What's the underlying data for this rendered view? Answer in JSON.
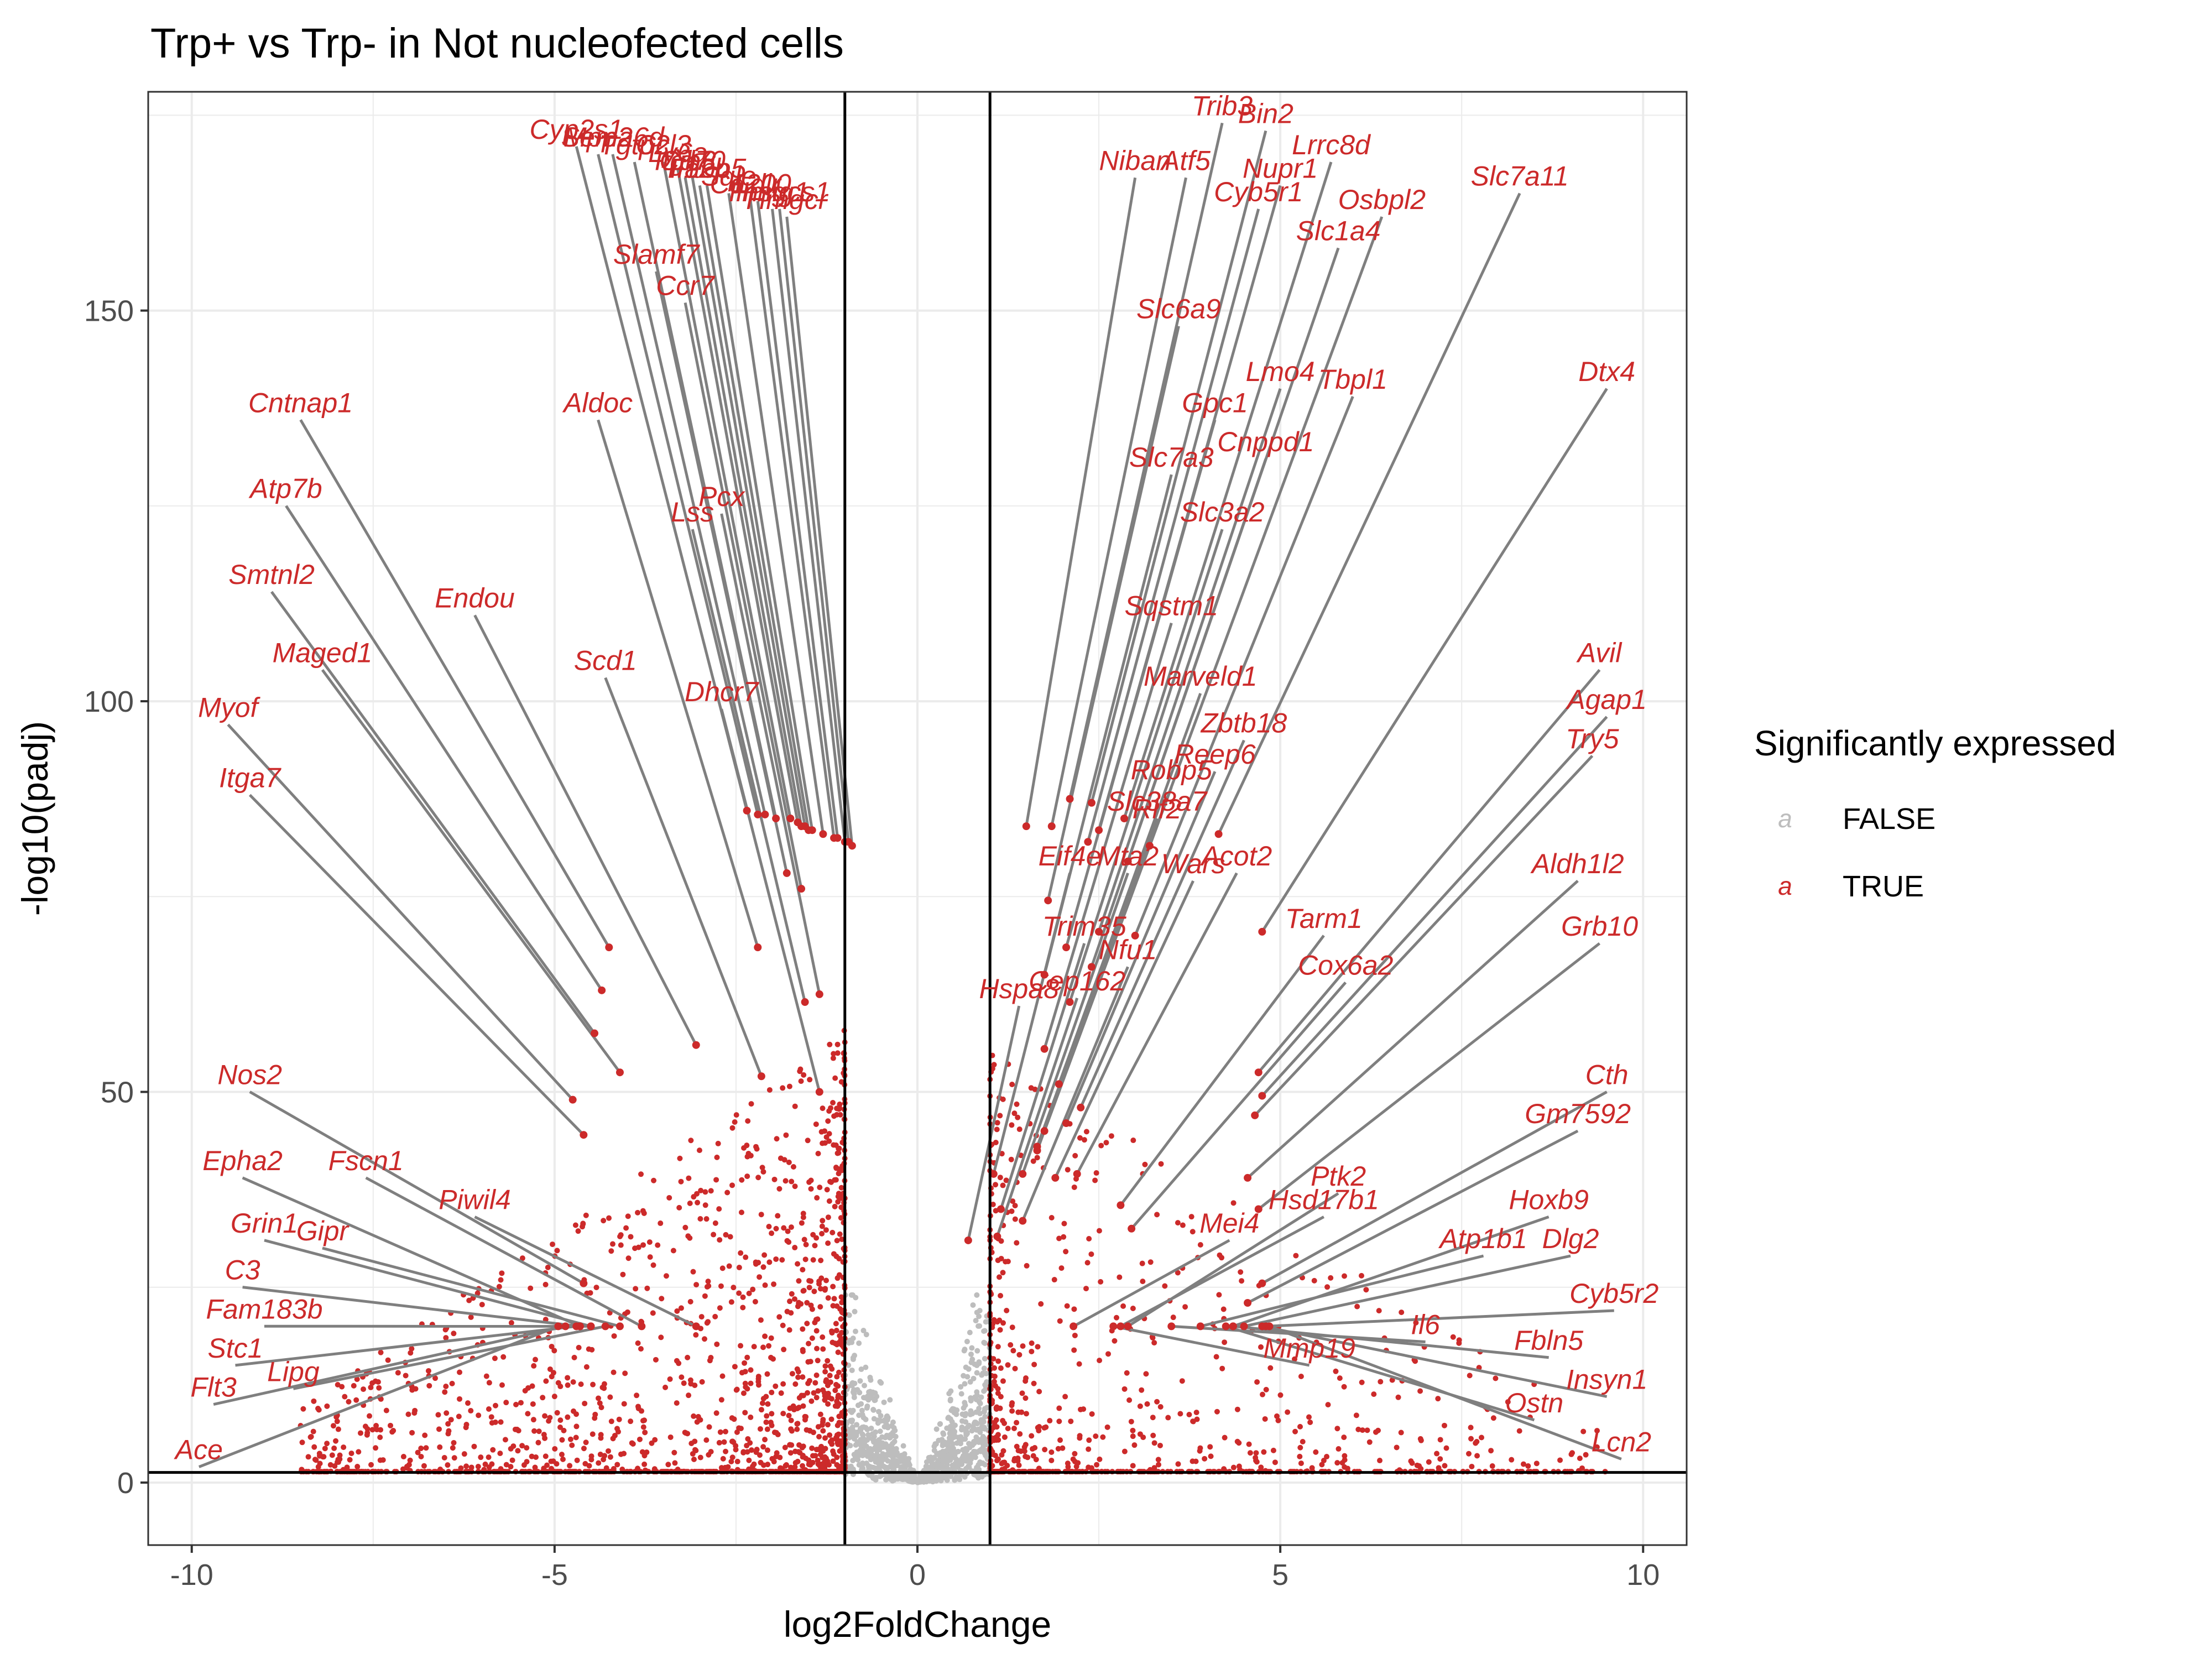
{
  "chart_data": {
    "type": "scatter",
    "title": "Trp+ vs Trp- in Not nucleofected cells",
    "xlabel": "log2FoldChange",
    "ylabel": "-log10(padj)",
    "xlim": [
      -10.6,
      10.6
    ],
    "ylim": [
      -8,
      178
    ],
    "x_ticks": [
      -10,
      -5,
      0,
      5,
      10
    ],
    "x_tick_labels": [
      "-10",
      "-5",
      "0",
      "5",
      "10"
    ],
    "y_ticks": [
      0,
      50,
      100,
      150
    ],
    "y_tick_labels": [
      "0",
      "50",
      "100",
      "150"
    ],
    "grid": true,
    "thresholds": {
      "log2fc": [
        -1,
        1
      ],
      "neg_log10_padj": 1.3
    },
    "colors": {
      "significant": "#cc2a2a",
      "not_significant": "#bdbdbd",
      "connector": "#7f7f7f",
      "threshold_line": "#000000"
    },
    "legend": {
      "title": "Significantly expressed",
      "position": "right",
      "key_glyph": "a",
      "items": [
        {
          "label": "FALSE",
          "color": "#bdbdbd"
        },
        {
          "label": "TRUE",
          "color": "#cc2a2a"
        }
      ]
    },
    "labeled_genes": [
      {
        "gene": "Cyp2s1",
        "x": -4.7,
        "y": 172
      },
      {
        "gene": "Sema6d",
        "x": -4.2,
        "y": 171
      },
      {
        "gene": "Tgtp2",
        "x": -3.9,
        "y": 170
      },
      {
        "gene": "Ccl3",
        "x": -3.5,
        "y": 170
      },
      {
        "gene": "Ly6a",
        "x": -3.3,
        "y": 169
      },
      {
        "gene": "Itgb3",
        "x": -3.2,
        "y": 168
      },
      {
        "gene": "Cd70",
        "x": -3.1,
        "y": 168
      },
      {
        "gene": "Mpp2",
        "x": -4.4,
        "y": 171
      },
      {
        "gene": "Il12b",
        "x": -3.0,
        "y": 167
      },
      {
        "gene": "Fabp5",
        "x": -2.9,
        "y": 167
      },
      {
        "gene": "Sqle",
        "x": -2.6,
        "y": 166
      },
      {
        "gene": "Cd200",
        "x": -2.3,
        "y": 165
      },
      {
        "gene": "Ldlr",
        "x": -2.2,
        "y": 165
      },
      {
        "gene": "Insig1",
        "x": -2.0,
        "y": 164
      },
      {
        "gene": "Hmgcs1",
        "x": -1.9,
        "y": 164
      },
      {
        "gene": "Hmgcr",
        "x": -1.8,
        "y": 163
      },
      {
        "gene": "Slamf7",
        "x": -3.6,
        "y": 156
      },
      {
        "gene": "Ccr7",
        "x": -3.2,
        "y": 152
      },
      {
        "gene": "Aldoc",
        "x": -4.4,
        "y": 137
      },
      {
        "gene": "Lss",
        "x": -3.1,
        "y": 123
      },
      {
        "gene": "Cntnap1",
        "x": -8.5,
        "y": 137
      },
      {
        "gene": "Endou",
        "x": -6.1,
        "y": 112
      },
      {
        "gene": "Pcx",
        "x": -2.7,
        "y": 125
      },
      {
        "gene": "Atp7b",
        "x": -8.7,
        "y": 126
      },
      {
        "gene": "Scd1",
        "x": -4.3,
        "y": 104
      },
      {
        "gene": "Dhcr7",
        "x": -2.7,
        "y": 100
      },
      {
        "gene": "Smtnl2",
        "x": -8.9,
        "y": 115
      },
      {
        "gene": "Maged1",
        "x": -8.2,
        "y": 105
      },
      {
        "gene": "Myof",
        "x": -9.5,
        "y": 98
      },
      {
        "gene": "Itga7",
        "x": -9.2,
        "y": 89
      },
      {
        "gene": "Nos2",
        "x": -9.2,
        "y": 51
      },
      {
        "gene": "Epha2",
        "x": -9.3,
        "y": 40
      },
      {
        "gene": "Fscn1",
        "x": -7.6,
        "y": 40
      },
      {
        "gene": "Piwil4",
        "x": -6.1,
        "y": 35
      },
      {
        "gene": "Grin1",
        "x": -9.0,
        "y": 32
      },
      {
        "gene": "Gipr",
        "x": -8.2,
        "y": 31
      },
      {
        "gene": "C3",
        "x": -9.3,
        "y": 26
      },
      {
        "gene": "Fam183b",
        "x": -9.0,
        "y": 21
      },
      {
        "gene": "Stc1",
        "x": -9.4,
        "y": 16
      },
      {
        "gene": "Lipg",
        "x": -8.6,
        "y": 13
      },
      {
        "gene": "Flt3",
        "x": -9.7,
        "y": 11
      },
      {
        "gene": "Ace",
        "x": -9.9,
        "y": 3
      },
      {
        "gene": "Trib3",
        "x": 4.2,
        "y": 175
      },
      {
        "gene": "Bin2",
        "x": 4.8,
        "y": 174
      },
      {
        "gene": "Lrrc8d",
        "x": 5.7,
        "y": 170
      },
      {
        "gene": "Niban",
        "x": 3.0,
        "y": 168
      },
      {
        "gene": "Atf5",
        "x": 3.7,
        "y": 168
      },
      {
        "gene": "Nupr1",
        "x": 5.0,
        "y": 167
      },
      {
        "gene": "Slc7a11",
        "x": 8.3,
        "y": 166
      },
      {
        "gene": "Cyb5r1",
        "x": 4.7,
        "y": 164
      },
      {
        "gene": "Osbpl2",
        "x": 6.4,
        "y": 163
      },
      {
        "gene": "Slc1a4",
        "x": 5.8,
        "y": 159
      },
      {
        "gene": "Slc6a9",
        "x": 3.6,
        "y": 149
      },
      {
        "gene": "Lmo4",
        "x": 5.0,
        "y": 141
      },
      {
        "gene": "Tbpl1",
        "x": 6.0,
        "y": 140
      },
      {
        "gene": "Dtx4",
        "x": 9.5,
        "y": 141
      },
      {
        "gene": "Gpc1",
        "x": 4.1,
        "y": 137
      },
      {
        "gene": "Cnppd1",
        "x": 4.8,
        "y": 132
      },
      {
        "gene": "Slc7a3",
        "x": 3.5,
        "y": 130
      },
      {
        "gene": "Slc3a2",
        "x": 4.2,
        "y": 123
      },
      {
        "gene": "Sqstm1",
        "x": 3.5,
        "y": 111
      },
      {
        "gene": "Avil",
        "x": 9.4,
        "y": 105
      },
      {
        "gene": "Marveld1",
        "x": 3.9,
        "y": 102
      },
      {
        "gene": "Agap1",
        "x": 9.5,
        "y": 99
      },
      {
        "gene": "Zbtb18",
        "x": 4.5,
        "y": 96
      },
      {
        "gene": "Try5",
        "x": 9.3,
        "y": 94
      },
      {
        "gene": "Reep6",
        "x": 4.1,
        "y": 92
      },
      {
        "gene": "Robp5",
        "x": 3.5,
        "y": 90
      },
      {
        "gene": "Slc38a7",
        "x": 3.3,
        "y": 86
      },
      {
        "gene": "Rlf2",
        "x": 3.3,
        "y": 85
      },
      {
        "gene": "Eif4e",
        "x": 2.1,
        "y": 79
      },
      {
        "gene": "Mta2",
        "x": 2.9,
        "y": 79
      },
      {
        "gene": "Wars",
        "x": 3.8,
        "y": 78
      },
      {
        "gene": "Acot2",
        "x": 4.4,
        "y": 79
      },
      {
        "gene": "Aldh1l2",
        "x": 9.1,
        "y": 78
      },
      {
        "gene": "Tarm1",
        "x": 5.6,
        "y": 71
      },
      {
        "gene": "Grb10",
        "x": 9.4,
        "y": 70
      },
      {
        "gene": "Trim35",
        "x": 2.3,
        "y": 70
      },
      {
        "gene": "Nfu1",
        "x": 2.9,
        "y": 67
      },
      {
        "gene": "Cox6a2",
        "x": 5.9,
        "y": 65
      },
      {
        "gene": "Hspa8",
        "x": 1.4,
        "y": 62
      },
      {
        "gene": "Cep162",
        "x": 2.2,
        "y": 63
      },
      {
        "gene": "Cth",
        "x": 9.5,
        "y": 51
      },
      {
        "gene": "Gm7592",
        "x": 9.1,
        "y": 46
      },
      {
        "gene": "Ptk2",
        "x": 5.8,
        "y": 38
      },
      {
        "gene": "Hsd17b1",
        "x": 5.6,
        "y": 35
      },
      {
        "gene": "Hoxb9",
        "x": 8.7,
        "y": 35
      },
      {
        "gene": "Mei4",
        "x": 4.3,
        "y": 32
      },
      {
        "gene": "Atp1b1",
        "x": 7.8,
        "y": 30
      },
      {
        "gene": "Dlg2",
        "x": 9.0,
        "y": 30
      },
      {
        "gene": "Cyb5r2",
        "x": 9.6,
        "y": 23
      },
      {
        "gene": "Il6",
        "x": 7.0,
        "y": 19
      },
      {
        "gene": "Mmp19",
        "x": 5.4,
        "y": 16
      },
      {
        "gene": "Fbln5",
        "x": 8.7,
        "y": 17
      },
      {
        "gene": "Insyn1",
        "x": 9.5,
        "y": 12
      },
      {
        "gene": "Ostn",
        "x": 8.5,
        "y": 9
      },
      {
        "gene": "Lcn2",
        "x": 9.7,
        "y": 4
      }
    ]
  }
}
